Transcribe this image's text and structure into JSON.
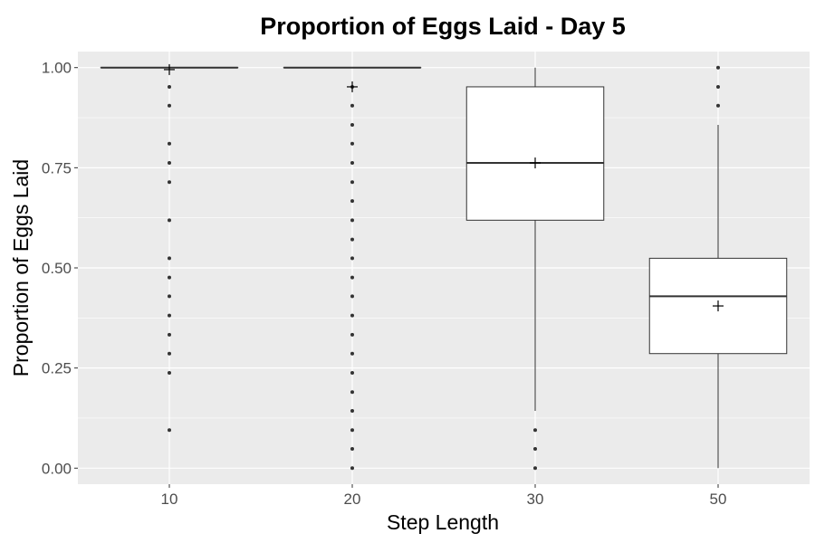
{
  "chart_data": {
    "type": "boxplot",
    "title": "Proportion of Eggs Laid - Day 5",
    "xlabel": "Step Length",
    "ylabel": "Proportion of Eggs Laid",
    "ylim": [
      -0.04,
      1.04
    ],
    "yticks": [
      "0.00",
      "0.25",
      "0.50",
      "0.75",
      "1.00"
    ],
    "grid": true,
    "categories": [
      "10",
      "20",
      "30",
      "50"
    ],
    "boxes": [
      {
        "category": "10",
        "whisker_low": 1.0,
        "q1": 1.0,
        "median": 1.0,
        "q3": 1.0,
        "whisker_high": 1.0,
        "mean": 0.995,
        "outliers": [
          0.952,
          0.905,
          0.81,
          0.762,
          0.714,
          0.619,
          0.524,
          0.476,
          0.429,
          0.381,
          0.333,
          0.286,
          0.238,
          0.095
        ]
      },
      {
        "category": "20",
        "whisker_low": 1.0,
        "q1": 1.0,
        "median": 1.0,
        "q3": 1.0,
        "whisker_high": 1.0,
        "mean": 0.952,
        "outliers": [
          0.952,
          0.905,
          0.857,
          0.81,
          0.762,
          0.714,
          0.667,
          0.619,
          0.571,
          0.524,
          0.476,
          0.429,
          0.381,
          0.333,
          0.286,
          0.238,
          0.19,
          0.143,
          0.095,
          0.048,
          0.0
        ]
      },
      {
        "category": "30",
        "whisker_low": 0.143,
        "q1": 0.619,
        "median": 0.762,
        "q3": 0.952,
        "whisker_high": 1.0,
        "mean": 0.762,
        "outliers": [
          0.095,
          0.048,
          0.0
        ]
      },
      {
        "category": "50",
        "whisker_low": 0.0,
        "q1": 0.286,
        "median": 0.429,
        "q3": 0.524,
        "whisker_high": 0.857,
        "mean": 0.405,
        "outliers": [
          1.0,
          0.952,
          0.905
        ]
      }
    ],
    "colors": {
      "panel": "#ebebeb",
      "grid_major": "#ffffff",
      "box_fill": "#ffffff",
      "stroke": "#333333",
      "tick_text": "#4d4d4d"
    }
  }
}
